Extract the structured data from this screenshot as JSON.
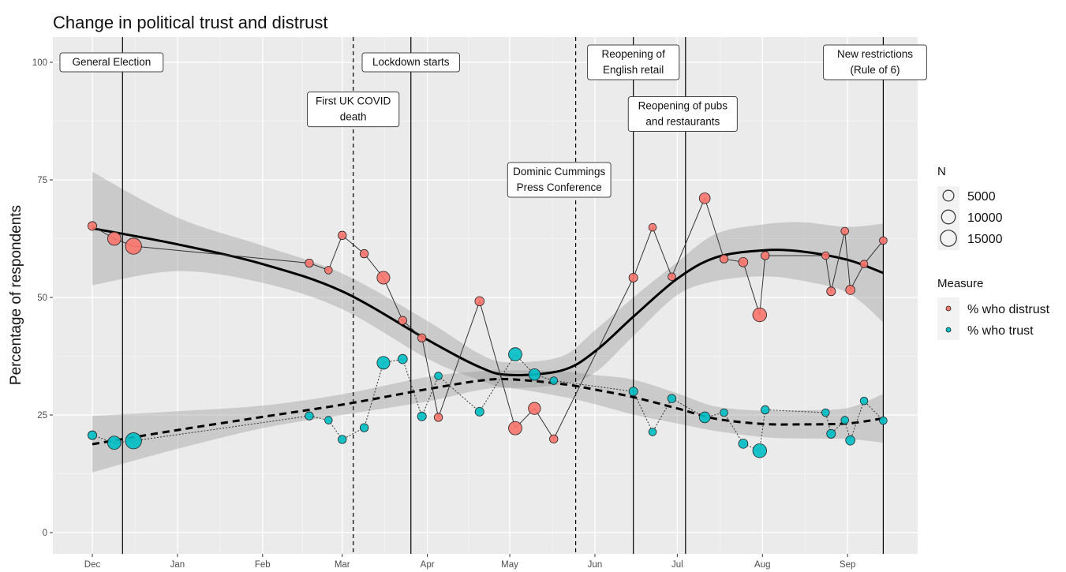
{
  "chart_data": {
    "type": "scatter",
    "title": "Change in political trust and distrust",
    "ylabel": "Percentage of respondents",
    "xlabel": "",
    "xlim": [
      "2019-12-01",
      "2020-09-15"
    ],
    "ylim": [
      0,
      100
    ],
    "yticks": [
      0,
      25,
      50,
      75,
      100
    ],
    "xticks": [
      {
        "date": "2019-12-01",
        "label": "Dec"
      },
      {
        "date": "2020-01-01",
        "label": "Jan"
      },
      {
        "date": "2020-02-01",
        "label": "Feb"
      },
      {
        "date": "2020-03-01",
        "label": "Mar"
      },
      {
        "date": "2020-04-01",
        "label": "Apr"
      },
      {
        "date": "2020-05-01",
        "label": "May"
      },
      {
        "date": "2020-06-01",
        "label": "Jun"
      },
      {
        "date": "2020-07-01",
        "label": "Jul"
      },
      {
        "date": "2020-08-01",
        "label": "Aug"
      },
      {
        "date": "2020-09-01",
        "label": "Sep"
      }
    ],
    "grid": true,
    "events": [
      {
        "date": "2019-12-12",
        "label": "General Election",
        "line": "solid"
      },
      {
        "date": "2020-03-05",
        "label": "First UK COVID death",
        "line": "dashed"
      },
      {
        "date": "2020-03-26",
        "label": "Lockdown starts",
        "line": "solid"
      },
      {
        "date": "2020-05-25",
        "label": "Dominic Cummings Press Conference",
        "line": "dashed"
      },
      {
        "date": "2020-06-15",
        "label": "Reopening of English retail",
        "line": "solid"
      },
      {
        "date": "2020-07-04",
        "label": "Reopening of pubs and restaurants",
        "line": "solid"
      },
      {
        "date": "2020-09-14",
        "label": "New restrictions (Rule of 6)",
        "line": "solid"
      }
    ],
    "annotations": [
      {
        "lines": [
          "General Election"
        ],
        "date": "2019-12-08",
        "y": 100
      },
      {
        "lines": [
          "First UK COVID",
          "death"
        ],
        "date": "2020-03-05",
        "y": 90
      },
      {
        "lines": [
          "Lockdown starts"
        ],
        "date": "2020-03-26",
        "y": 100
      },
      {
        "lines": [
          "Dominic Cummings",
          "Press Conference"
        ],
        "date": "2020-05-19",
        "y": 75
      },
      {
        "lines": [
          "Reopening of",
          "English retail"
        ],
        "date": "2020-06-15",
        "y": 100
      },
      {
        "lines": [
          "Reopening of pubs",
          "and restaurants"
        ],
        "date": "2020-07-03",
        "y": 89
      },
      {
        "lines": [
          "New restrictions",
          "(Rule of 6)"
        ],
        "date": "2020-09-11",
        "y": 100
      }
    ],
    "series": [
      {
        "name": "% who distrust",
        "color": "#F8766D",
        "line_style": "solid",
        "points": [
          {
            "date": "2019-12-01",
            "y": 65.2,
            "n": 2500
          },
          {
            "date": "2019-12-09",
            "y": 62.5,
            "n": 9000
          },
          {
            "date": "2019-12-16",
            "y": 60.9,
            "n": 15000
          },
          {
            "date": "2020-02-18",
            "y": 57.3,
            "n": 2000
          },
          {
            "date": "2020-02-25",
            "y": 55.8,
            "n": 1500
          },
          {
            "date": "2020-03-01",
            "y": 63.2,
            "n": 2000
          },
          {
            "date": "2020-03-09",
            "y": 59.3,
            "n": 2000
          },
          {
            "date": "2020-03-16",
            "y": 54.2,
            "n": 8000
          },
          {
            "date": "2020-03-23",
            "y": 45.1,
            "n": 2000
          },
          {
            "date": "2020-03-30",
            "y": 41.4,
            "n": 2000
          },
          {
            "date": "2020-04-05",
            "y": 24.5,
            "n": 2000
          },
          {
            "date": "2020-04-20",
            "y": 49.2,
            "n": 3000
          },
          {
            "date": "2020-05-03",
            "y": 22.2,
            "n": 9000
          },
          {
            "date": "2020-05-10",
            "y": 26.4,
            "n": 7000
          },
          {
            "date": "2020-05-17",
            "y": 19.9,
            "n": 2000
          },
          {
            "date": "2020-06-15",
            "y": 54.2,
            "n": 2500
          },
          {
            "date": "2020-06-22",
            "y": 64.9,
            "n": 1500
          },
          {
            "date": "2020-06-29",
            "y": 54.4,
            "n": 1500
          },
          {
            "date": "2020-07-11",
            "y": 71.1,
            "n": 5000
          },
          {
            "date": "2020-07-18",
            "y": 58.2,
            "n": 2000
          },
          {
            "date": "2020-07-25",
            "y": 57.5,
            "n": 3000
          },
          {
            "date": "2020-07-31",
            "y": 46.3,
            "n": 10000
          },
          {
            "date": "2020-08-02",
            "y": 58.9,
            "n": 2000
          },
          {
            "date": "2020-08-24",
            "y": 58.9,
            "n": 1500
          },
          {
            "date": "2020-08-26",
            "y": 51.3,
            "n": 2500
          },
          {
            "date": "2020-08-31",
            "y": 64.1,
            "n": 1500
          },
          {
            "date": "2020-09-02",
            "y": 51.6,
            "n": 3000
          },
          {
            "date": "2020-09-07",
            "y": 57.1,
            "n": 1500
          },
          {
            "date": "2020-09-14",
            "y": 62.1,
            "n": 1500
          }
        ],
        "smooth": {
          "line_style": "solid",
          "x": [
            "2019-12-01",
            "2020-01-01",
            "2020-02-01",
            "2020-03-01",
            "2020-04-01",
            "2020-04-20",
            "2020-05-01",
            "2020-05-20",
            "2020-06-01",
            "2020-06-15",
            "2020-07-01",
            "2020-07-15",
            "2020-08-01",
            "2020-08-15",
            "2020-09-01",
            "2020-09-14"
          ],
          "y": [
            64.7,
            61.3,
            57.1,
            51.3,
            41.0,
            35.2,
            33.5,
            34.5,
            38.5,
            45.9,
            54.0,
            58.5,
            60.0,
            59.8,
            58.0,
            55.2
          ],
          "upper": [
            76.7,
            67.0,
            61.0,
            55.1,
            45.0,
            38.0,
            36.2,
            37.5,
            43.0,
            50.0,
            57.5,
            63.5,
            65.5,
            66.0,
            65.0,
            65.7
          ],
          "lower": [
            52.6,
            55.6,
            53.1,
            47.5,
            37.0,
            32.4,
            30.8,
            31.5,
            34.0,
            41.8,
            50.5,
            53.5,
            54.5,
            53.6,
            51.0,
            44.7
          ]
        }
      },
      {
        "name": "% who trust",
        "color": "#00BFC4",
        "line_style": "dotted",
        "points": [
          {
            "date": "2019-12-01",
            "y": 20.7,
            "n": 2500
          },
          {
            "date": "2019-12-09",
            "y": 19.1,
            "n": 9000
          },
          {
            "date": "2019-12-16",
            "y": 19.5,
            "n": 15000
          },
          {
            "date": "2020-02-18",
            "y": 24.8,
            "n": 2000
          },
          {
            "date": "2020-02-25",
            "y": 23.9,
            "n": 1500
          },
          {
            "date": "2020-03-01",
            "y": 19.8,
            "n": 2000
          },
          {
            "date": "2020-03-09",
            "y": 22.3,
            "n": 2000
          },
          {
            "date": "2020-03-16",
            "y": 36.1,
            "n": 8000
          },
          {
            "date": "2020-03-23",
            "y": 36.9,
            "n": 3000
          },
          {
            "date": "2020-03-30",
            "y": 24.7,
            "n": 2500
          },
          {
            "date": "2020-04-05",
            "y": 33.3,
            "n": 1500
          },
          {
            "date": "2020-04-20",
            "y": 25.7,
            "n": 2500
          },
          {
            "date": "2020-05-03",
            "y": 37.9,
            "n": 9000
          },
          {
            "date": "2020-05-10",
            "y": 33.6,
            "n": 6000
          },
          {
            "date": "2020-05-17",
            "y": 32.3,
            "n": 1500
          },
          {
            "date": "2020-06-15",
            "y": 30.0,
            "n": 2500
          },
          {
            "date": "2020-06-22",
            "y": 21.4,
            "n": 1500
          },
          {
            "date": "2020-06-29",
            "y": 28.5,
            "n": 2000
          },
          {
            "date": "2020-07-11",
            "y": 24.5,
            "n": 5000
          },
          {
            "date": "2020-07-18",
            "y": 25.5,
            "n": 1500
          },
          {
            "date": "2020-07-25",
            "y": 18.9,
            "n": 3000
          },
          {
            "date": "2020-07-31",
            "y": 17.4,
            "n": 10000
          },
          {
            "date": "2020-08-02",
            "y": 26.1,
            "n": 2000
          },
          {
            "date": "2020-08-24",
            "y": 25.5,
            "n": 1500
          },
          {
            "date": "2020-08-26",
            "y": 21.0,
            "n": 2500
          },
          {
            "date": "2020-08-31",
            "y": 23.9,
            "n": 1500
          },
          {
            "date": "2020-09-02",
            "y": 19.6,
            "n": 3000
          },
          {
            "date": "2020-09-07",
            "y": 28.0,
            "n": 1500
          },
          {
            "date": "2020-09-14",
            "y": 23.8,
            "n": 1500
          }
        ],
        "smooth": {
          "line_style": "dashed",
          "x": [
            "2019-12-01",
            "2020-01-01",
            "2020-02-01",
            "2020-03-01",
            "2020-04-01",
            "2020-04-20",
            "2020-05-01",
            "2020-05-20",
            "2020-06-01",
            "2020-06-15",
            "2020-07-01",
            "2020-07-15",
            "2020-08-01",
            "2020-08-15",
            "2020-09-01",
            "2020-09-14"
          ],
          "y": [
            18.8,
            21.8,
            24.6,
            27.2,
            30.5,
            32.3,
            32.6,
            31.6,
            30.4,
            28.8,
            26.4,
            24.2,
            23.1,
            23.0,
            23.2,
            24.3
          ],
          "upper": [
            24.8,
            25.8,
            27.0,
            29.4,
            33.1,
            34.3,
            34.5,
            34.3,
            33.5,
            32.5,
            29.6,
            26.8,
            25.9,
            26.0,
            26.5,
            29.5
          ],
          "lower": [
            12.8,
            17.8,
            22.2,
            25.0,
            27.9,
            30.3,
            30.7,
            28.9,
            27.3,
            25.1,
            23.2,
            21.6,
            20.3,
            20.0,
            19.9,
            19.1
          ]
        }
      }
    ],
    "legend": {
      "placement": "right",
      "size_title": "N",
      "size_entries": [
        {
          "label": "5000",
          "n": 5000
        },
        {
          "label": "10000",
          "n": 10000
        },
        {
          "label": "15000",
          "n": 15000
        }
      ],
      "color_title": "Measure",
      "color_entries": [
        "% who distrust",
        "% who trust"
      ]
    }
  }
}
